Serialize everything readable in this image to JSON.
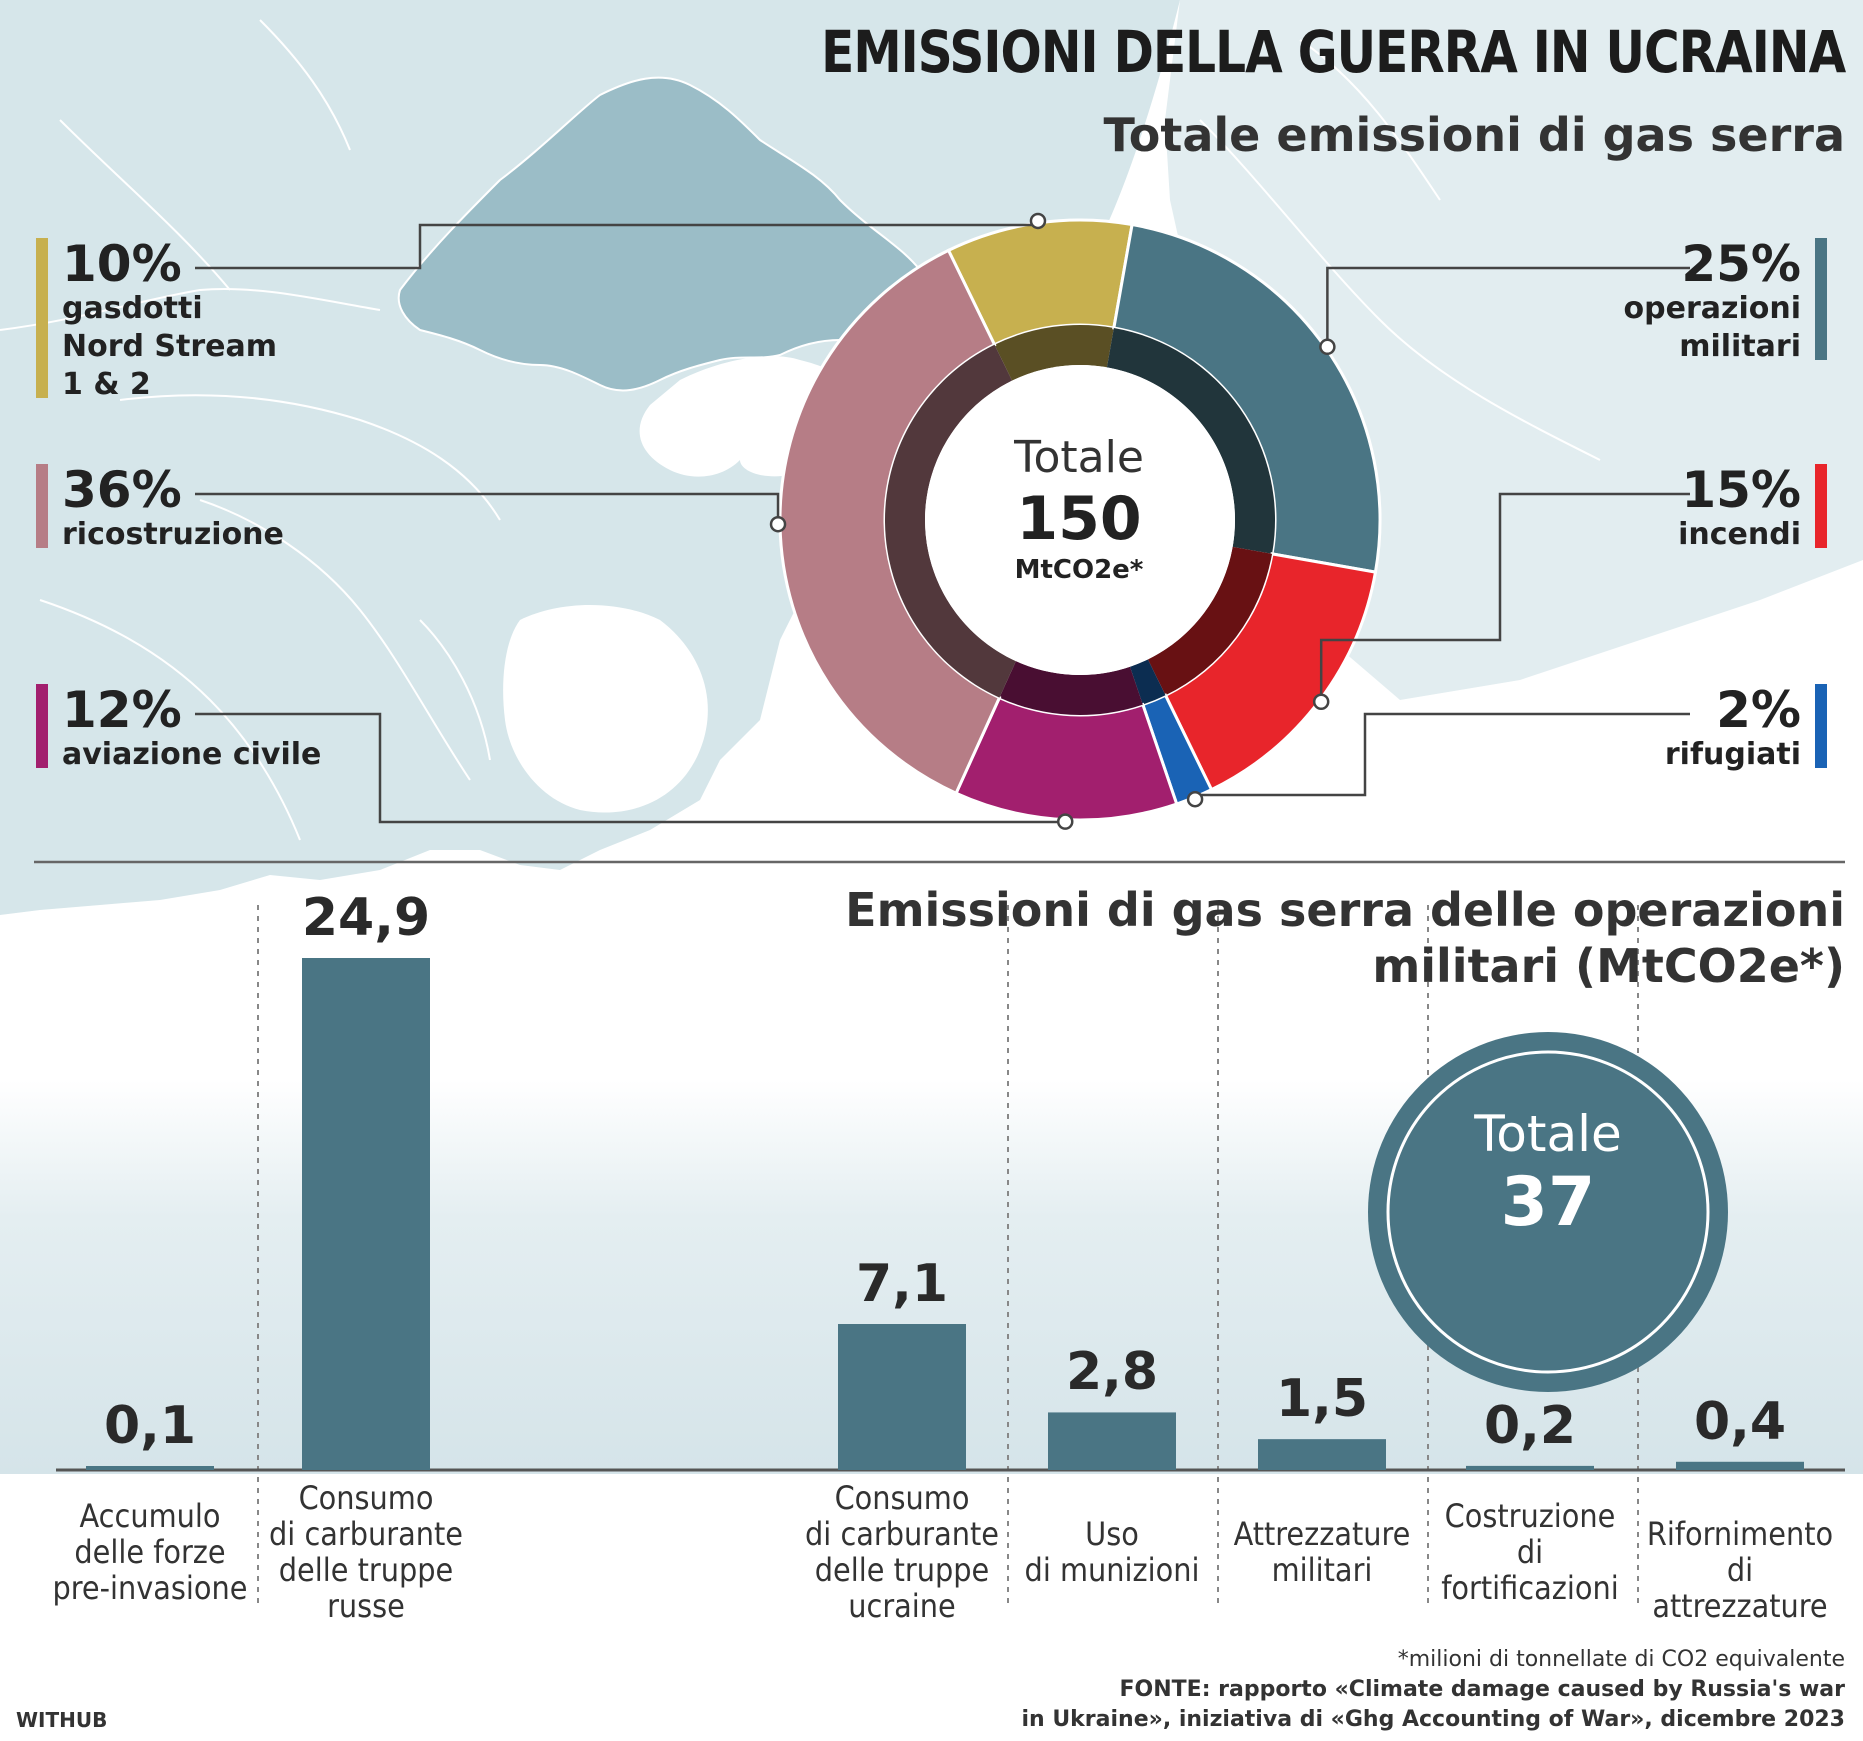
{
  "title": "EMISSIONI DELLA GUERRA IN UCRAINA",
  "subtitle": "Totale emissioni di gas serra",
  "colors": {
    "sea": "#ffffff",
    "land": "#d6e6ea",
    "ukraine": "#9bbdc7",
    "bar": "#4a7584",
    "divider": "#666666"
  },
  "chart_data": [
    {
      "type": "pie",
      "donut": true,
      "title": "Totale emissioni di gas serra",
      "center": {
        "label": "Totale",
        "value": "150",
        "unit": "MtCO2e*"
      },
      "slices": [
        {
          "label": "gasdotti Nord Stream 1 & 2",
          "pct_label": "10%",
          "value": 10,
          "color": "#c7b04f",
          "side": "left"
        },
        {
          "label": "operazioni militari",
          "pct_label": "25%",
          "value": 25,
          "color": "#4a7584",
          "side": "right"
        },
        {
          "label": "incendi",
          "pct_label": "15%",
          "value": 15,
          "color": "#e8252b",
          "side": "right"
        },
        {
          "label": "rifugiati",
          "pct_label": "2%",
          "value": 2,
          "color": "#1a63b5",
          "side": "right"
        },
        {
          "label": "aviazione civile",
          "pct_label": "12%",
          "value": 12,
          "color": "#a21f6e",
          "side": "left"
        },
        {
          "label": "ricostruzione",
          "pct_label": "36%",
          "value": 36,
          "color": "#b67d86",
          "side": "left"
        }
      ]
    },
    {
      "type": "bar",
      "title_lines": [
        "Emissioni di gas serra delle operazioni",
        "militari (MtCO2e*)"
      ],
      "categories": [
        "Accumulo\ndelle forze\npre-invasione",
        "Consumo\ndi carburante\ndelle truppe\nrusse",
        "Consumo\ndi carburante\ndelle truppe\nucraine",
        "Uso\ndi munizioni",
        "Attrezzature\nmilitari",
        "Costruzione\ndi\nfortificazioni",
        "Rifornimento\ndi attrezzature"
      ],
      "values": [
        0.1,
        24.9,
        7.1,
        2.8,
        1.5,
        0.2,
        0.4
      ],
      "value_labels": [
        "0,1",
        "24,9",
        "7,1",
        "2,8",
        "1,5",
        "0,2",
        "0,4"
      ],
      "ylim": [
        0,
        24.9
      ],
      "total": {
        "label": "Totale",
        "value": "37"
      }
    }
  ],
  "footnote": "*milioni di tonnellate di CO2 equivalente",
  "source": [
    "FONTE:  rapporto «Climate damage caused by Russia's war",
    "in Ukraine», iniziativa di «Ghg Accounting of War», dicembre 2023"
  ],
  "credit": "WITHUB"
}
